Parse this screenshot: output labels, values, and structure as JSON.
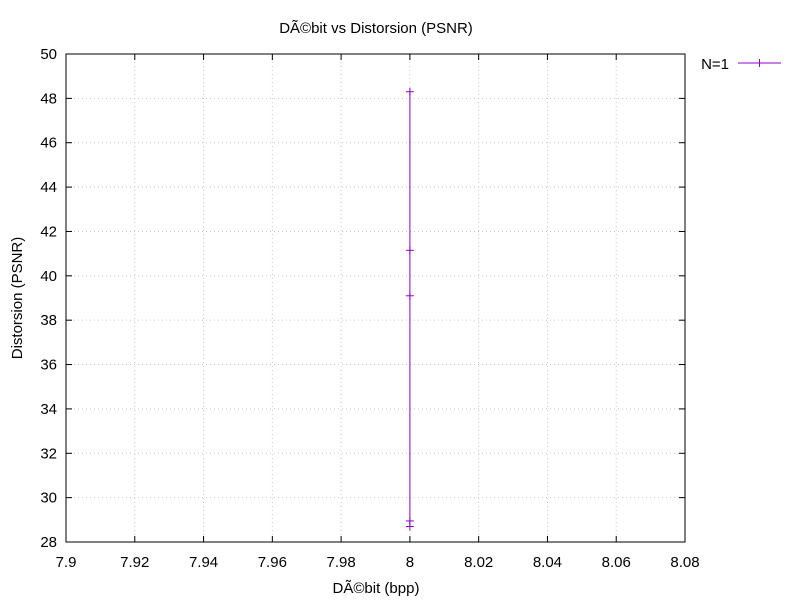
{
  "chart_data": {
    "type": "line",
    "title": "DÃ©bit vs Distorsion (PSNR)",
    "xlabel": "DÃ©bit (bpp)",
    "ylabel": "Distorsion (PSNR)",
    "xlim": [
      7.9,
      8.08
    ],
    "ylim": [
      28,
      50
    ],
    "x_ticks": [
      "7.9",
      "7.92",
      "7.94",
      "7.96",
      "7.98",
      "8",
      "8.02",
      "8.04",
      "8.06",
      "8.08"
    ],
    "y_ticks": [
      "28",
      "30",
      "32",
      "34",
      "36",
      "38",
      "40",
      "42",
      "44",
      "46",
      "48",
      "50"
    ],
    "grid": true,
    "legend_position": "outside-top-right",
    "series": [
      {
        "name": "N=1",
        "color": "#9400d3",
        "x": [
          8,
          8,
          8,
          8,
          8
        ],
        "y": [
          48.3,
          41.15,
          39.1,
          28.95,
          28.7
        ]
      }
    ]
  }
}
